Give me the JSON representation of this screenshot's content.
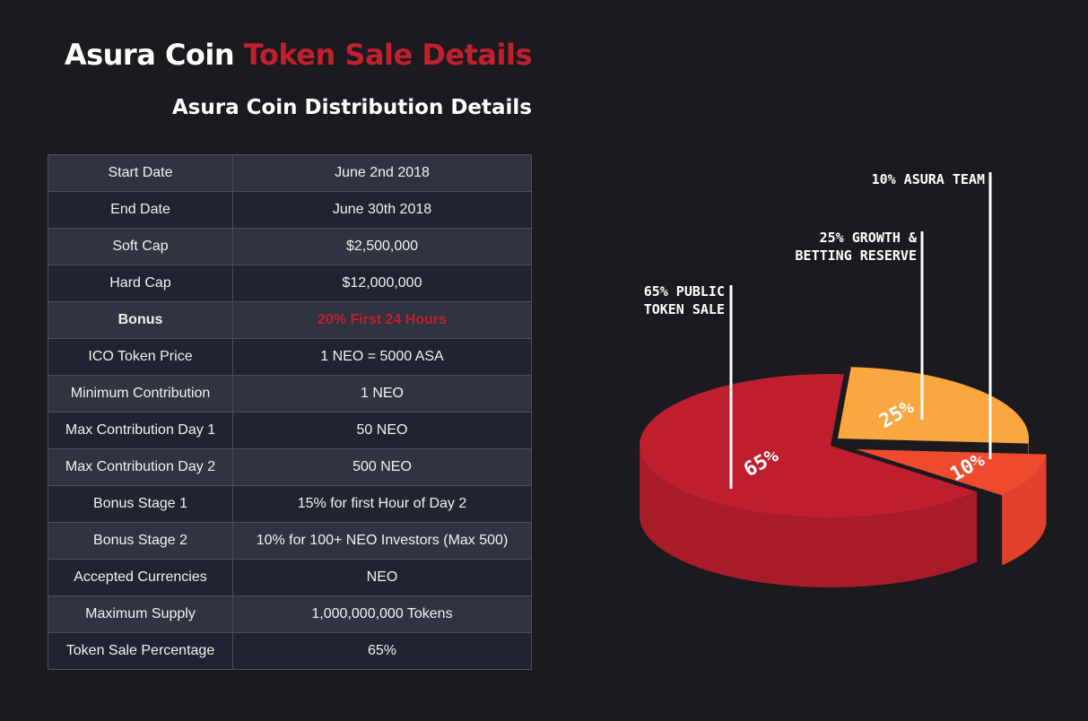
{
  "header": {
    "title_main": "Asura Coin",
    "title_accent": "Token Sale Details",
    "subtitle": "Asura Coin Distribution Details"
  },
  "details_table": {
    "rows": [
      {
        "label": "Start Date",
        "value": "June 2nd 2018"
      },
      {
        "label": "End Date",
        "value": "June 30th 2018"
      },
      {
        "label": "Soft Cap",
        "value": "$2,500,000"
      },
      {
        "label": "Hard Cap",
        "value": "$12,000,000"
      },
      {
        "label": "Bonus",
        "value": "20% First 24 Hours"
      },
      {
        "label": "ICO Token Price",
        "value": "1 NEO = 5000 ASA"
      },
      {
        "label": "Minimum Contribution",
        "value": "1 NEO"
      },
      {
        "label": "Max Contribution Day 1",
        "value": "50 NEO"
      },
      {
        "label": "Max Contribution Day 2",
        "value": "500 NEO"
      },
      {
        "label": "Bonus Stage 1",
        "value": "15% for first Hour of Day 2"
      },
      {
        "label": "Bonus Stage 2",
        "value": "10% for 100+ NEO Investors (Max 500)"
      },
      {
        "label": "Accepted Currencies",
        "value": "NEO"
      },
      {
        "label": "Maximum Supply",
        "value": "1,000,000,000 Tokens"
      },
      {
        "label": "Token Sale Percentage",
        "value": "65%"
      }
    ]
  },
  "colors": {
    "accent": "#c1202e",
    "background": "#1b1b1f",
    "public_sale": "#be1e2d",
    "reserve": "#f9a73e",
    "team": "#ee4a2e"
  },
  "chart_data": {
    "type": "pie",
    "style": "3d",
    "slices": [
      {
        "value": 65,
        "pct_label": "65%",
        "callout": [
          "65% PUBLIC",
          "TOKEN SALE"
        ],
        "color": "#be1e2d",
        "side_color": "#a81c29"
      },
      {
        "value": 25,
        "pct_label": "25%",
        "callout": [
          "25% GROWTH &",
          "BETTING RESERVE"
        ],
        "color": "#f9a73e",
        "side_color": "#e8922c"
      },
      {
        "value": 10,
        "pct_label": "10%",
        "callout": [
          "10% ASURA TEAM"
        ],
        "color": "#ee4a2e",
        "side_color": "#e33f2d"
      }
    ]
  }
}
